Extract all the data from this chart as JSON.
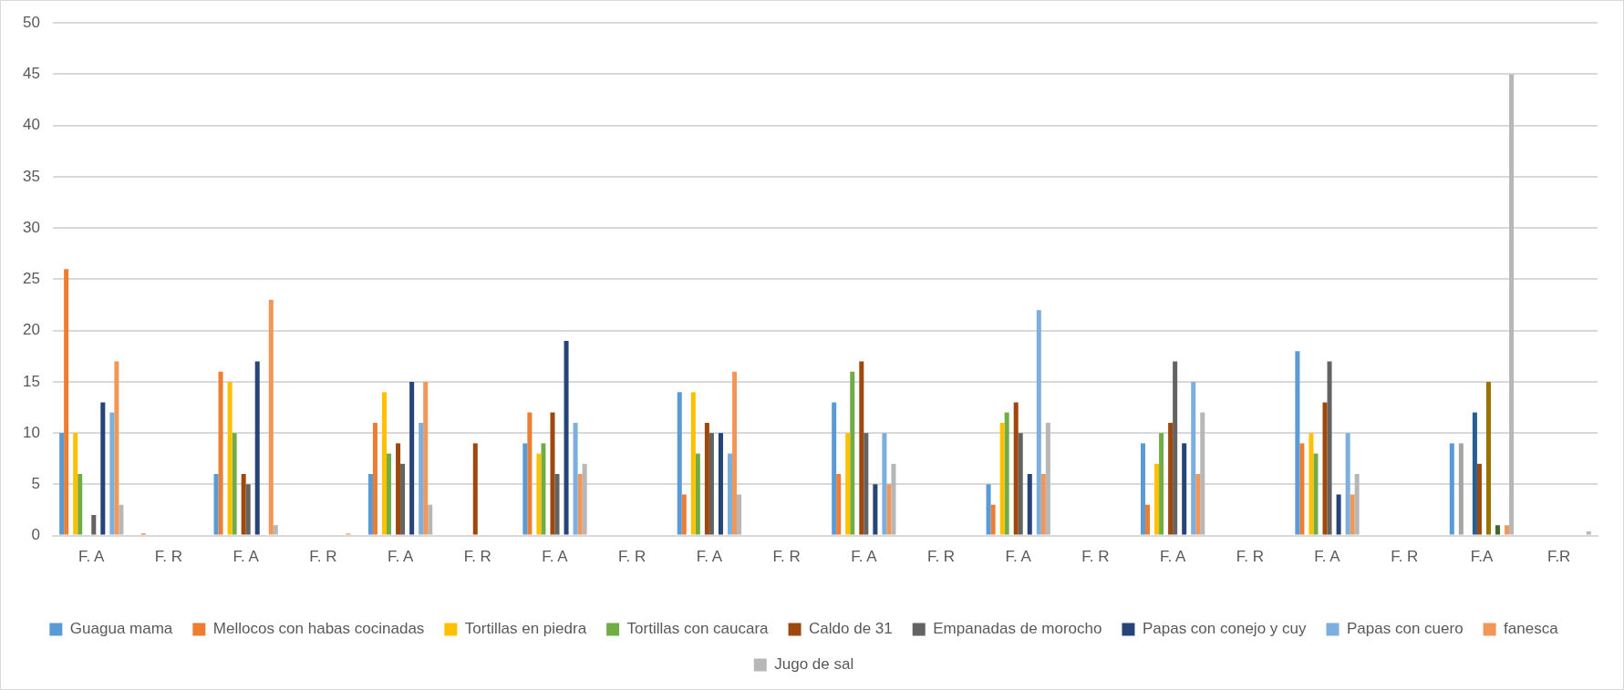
{
  "chart_data": {
    "type": "bar",
    "categories": [
      "F. A",
      "F. R",
      "F. A",
      "F. R",
      "F. A",
      "F. R",
      "F. A",
      "F. R",
      "F. A",
      "F. R",
      "F. A",
      "F. R",
      "F. A",
      "F. R",
      "F. A",
      "F. R",
      "F. A",
      "F. R",
      "F.A",
      "F.R"
    ],
    "series": [
      {
        "name": "Guagua mama",
        "color": "#5b9bd5",
        "values": [
          10,
          0,
          6,
          0,
          6,
          0,
          9,
          0,
          14,
          0,
          13,
          0,
          5,
          0,
          9,
          0,
          18,
          0,
          9,
          0
        ]
      },
      {
        "name": "Mellocos con habas cocinadas",
        "color": "#ed7d31",
        "values": [
          26,
          0.2,
          16,
          0,
          11,
          0,
          12,
          0,
          4,
          0,
          6,
          0,
          3,
          0,
          3,
          0,
          9,
          0,
          0,
          0
        ]
      },
      {
        "color": "#a5a5a5",
        "values": [
          0,
          0,
          0,
          0,
          0,
          0,
          0,
          0,
          0,
          0,
          0,
          0,
          0,
          0,
          0,
          0,
          0,
          0,
          9,
          0
        ]
      },
      {
        "name": "Tortillas en piedra",
        "color": "#ffc000",
        "values": [
          10,
          0,
          15,
          0,
          14,
          0,
          8,
          0,
          14,
          0,
          10,
          0,
          11,
          0,
          7,
          0,
          10,
          0,
          0,
          0
        ]
      },
      {
        "name": "Tortillas con caucara",
        "color": "#70ad47",
        "values": [
          6,
          0,
          10,
          0,
          8,
          0,
          9,
          0,
          8,
          0,
          16,
          0,
          12,
          0,
          10,
          0,
          8,
          0,
          0,
          0
        ]
      },
      {
        "color": "#255e91",
        "values": [
          0,
          0,
          0,
          0,
          0,
          0,
          0,
          0,
          0,
          0,
          0,
          0,
          0,
          0,
          0,
          0,
          0,
          0,
          12,
          0
        ]
      },
      {
        "name": "Caldo de 31",
        "color": "#9e480e",
        "values": [
          0,
          0,
          6,
          0,
          9,
          9,
          12,
          0,
          11,
          0,
          17,
          0,
          13,
          0,
          11,
          0,
          13,
          0,
          7,
          0
        ]
      },
      {
        "name": "Empanadas de morocho",
        "color": "#636363",
        "values": [
          2,
          0,
          5,
          0,
          7,
          0,
          6,
          0,
          10,
          0,
          10,
          0,
          10,
          0,
          17,
          0,
          17,
          0,
          0,
          0
        ]
      },
      {
        "color": "#997300",
        "values": [
          0,
          0,
          0,
          0,
          0,
          0,
          0,
          0,
          0,
          0,
          0,
          0,
          0,
          0,
          0,
          0,
          0,
          0,
          15,
          0
        ]
      },
      {
        "name": "Papas con conejo y cuy",
        "color": "#264478",
        "values": [
          13,
          0,
          17,
          0,
          15,
          0,
          19,
          0,
          10,
          0,
          5,
          0,
          6,
          0,
          9,
          0,
          4,
          0,
          0,
          0
        ]
      },
      {
        "color": "#43682b",
        "values": [
          0,
          0,
          0,
          0,
          0,
          0,
          0,
          0,
          0,
          0,
          0,
          0,
          0,
          0,
          0,
          0,
          0,
          0,
          1,
          0
        ]
      },
      {
        "name": "Papas con cuero",
        "color": "#7cafdd",
        "values": [
          12,
          0,
          0,
          0,
          11,
          0,
          11,
          0,
          8,
          0,
          10,
          0,
          22,
          0,
          15,
          0,
          10,
          0,
          0,
          0
        ]
      },
      {
        "name": "fanesca",
        "color": "#f1975a",
        "values": [
          17,
          0,
          23,
          0.2,
          15,
          0,
          6,
          0,
          16,
          0,
          5,
          0,
          6,
          0,
          6,
          0,
          4,
          0,
          1,
          0
        ]
      },
      {
        "name": "Jugo de sal",
        "color": "#b7b7b7",
        "values": [
          3,
          0,
          1,
          0,
          3,
          0,
          7,
          0,
          4,
          0,
          7,
          0,
          11,
          0,
          12,
          0,
          6,
          0,
          45,
          0.4
        ]
      }
    ],
    "ylim": [
      0,
      50
    ],
    "yticks": [
      0,
      5,
      10,
      15,
      20,
      25,
      30,
      35,
      40,
      45,
      50
    ],
    "grid": "y",
    "legend": "bottom"
  }
}
